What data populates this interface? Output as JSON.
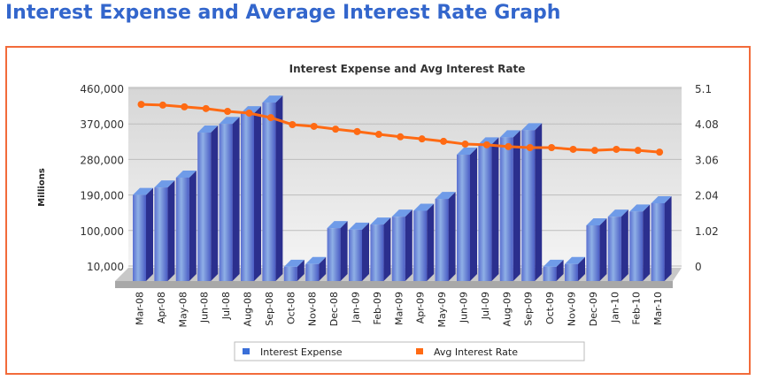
{
  "page_title": "Interest Expense and Average Interest Rate Graph",
  "chart_data": {
    "type": "bar+line",
    "title": "Interest Expense and Avg Interest Rate",
    "ylabel": "Millions",
    "ylabel_right": "",
    "categories": [
      "Mar-08",
      "Apr-08",
      "May-08",
      "Jun-08",
      "Jul-08",
      "Aug-08",
      "Sep-08",
      "Oct-08",
      "Nov-08",
      "Dec-08",
      "Jan-09",
      "Feb-09",
      "Mar-09",
      "Apr-09",
      "May-09",
      "Jun-09",
      "Jul-09",
      "Aug-09",
      "Sep-09",
      "Oct-09",
      "Nov-09",
      "Dec-09",
      "Jan-10",
      "Feb-10",
      "Mar-10"
    ],
    "series": [
      {
        "name": "Interest Expense",
        "type": "bar",
        "axis": "left",
        "color": "#3a3fb0",
        "values": [
          190000,
          209000,
          234000,
          348000,
          370000,
          397000,
          424000,
          8000,
          15000,
          106000,
          102000,
          115000,
          135000,
          150000,
          180000,
          292000,
          318000,
          336000,
          354000,
          8000,
          15000,
          113000,
          135000,
          148000,
          169000
        ]
      },
      {
        "name": "Avg Interest Rate",
        "type": "line",
        "axis": "right",
        "color": "#ff6a13",
        "values": [
          4.64,
          4.62,
          4.57,
          4.52,
          4.44,
          4.39,
          4.26,
          4.06,
          4.01,
          3.93,
          3.86,
          3.78,
          3.71,
          3.65,
          3.58,
          3.5,
          3.48,
          3.43,
          3.4,
          3.4,
          3.35,
          3.32,
          3.35,
          3.32,
          3.27
        ]
      }
    ],
    "yticks_left": [
      "10,000",
      "100,000",
      "190,000",
      "280,000",
      "370,000",
      "460,000"
    ],
    "yticks_right": [
      "0",
      "1.02",
      "2.04",
      "3.06",
      "4.08",
      "5.1"
    ],
    "ylim_left": [
      10000,
      460000
    ],
    "ylim_right": [
      0,
      5.1
    ],
    "grid": true,
    "legend": "bottom",
    "border_color": "#f26b3a",
    "title_color": "#3366cc"
  }
}
